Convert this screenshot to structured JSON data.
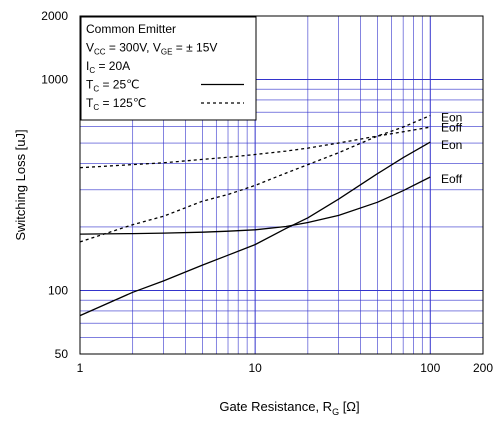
{
  "chart_data": {
    "type": "line",
    "xlabel": "Gate Resistance, R",
    "xlabel_sub": "G",
    "xlabel_unit": " [Ω]",
    "ylabel": "Switching Loss [uJ]",
    "x_scale": "log",
    "y_scale": "log",
    "xlim": [
      1,
      200
    ],
    "ylim": [
      50,
      2000
    ],
    "x_ticks": [
      {
        "value": 1,
        "label": "1"
      },
      {
        "value": 10,
        "label": "10"
      },
      {
        "value": 100,
        "label": "100"
      },
      {
        "value": 200,
        "label": "200"
      }
    ],
    "y_ticks": [
      {
        "value": 50,
        "label": "50"
      },
      {
        "value": 100,
        "label": "100"
      },
      {
        "value": 1000,
        "label": "1000"
      },
      {
        "value": 2000,
        "label": "2000"
      }
    ],
    "grid": true,
    "legend_box": {
      "position": "top-left",
      "lines": [
        {
          "parts": [
            {
              "t": "Common Emitter"
            }
          ]
        },
        {
          "parts": [
            {
              "t": "V"
            },
            {
              "t": "CC",
              "sub": true
            },
            {
              "t": " = 300V, V"
            },
            {
              "t": "GE",
              "sub": true
            },
            {
              "t": " = ±  15V"
            }
          ]
        },
        {
          "parts": [
            {
              "t": "I"
            },
            {
              "t": "C",
              "sub": true
            },
            {
              "t": " = 20A"
            }
          ]
        },
        {
          "parts": [
            {
              "t": "T"
            },
            {
              "t": "C",
              "sub": true
            },
            {
              "t": " =   25℃"
            }
          ],
          "line_style": "solid"
        },
        {
          "parts": [
            {
              "t": "T"
            },
            {
              "t": "C",
              "sub": true
            },
            {
              "t": " = 125℃"
            }
          ],
          "line_style": "dashed"
        }
      ]
    },
    "series": [
      {
        "name": "Eon",
        "condition": "25",
        "style": "solid",
        "x": [
          1,
          2,
          3,
          5,
          7,
          10,
          15,
          20,
          30,
          50,
          70,
          100
        ],
        "y": [
          76,
          98,
          111,
          132,
          147,
          165,
          197,
          221,
          271,
          358,
          426,
          505
        ]
      },
      {
        "name": "Eoff",
        "condition": "25",
        "style": "solid",
        "x": [
          1,
          2,
          3,
          5,
          7,
          10,
          15,
          20,
          30,
          50,
          70,
          100
        ],
        "y": [
          185,
          186,
          187,
          189,
          191,
          194,
          201,
          210,
          227,
          262,
          297,
          345
        ]
      },
      {
        "name": "Eon",
        "condition": "125",
        "style": "dashed",
        "x": [
          1,
          2,
          3,
          5,
          7,
          10,
          15,
          20,
          30,
          50,
          70,
          100
        ],
        "y": [
          170,
          205,
          225,
          265,
          285,
          315,
          360,
          395,
          450,
          540,
          595,
          675
        ]
      },
      {
        "name": "Eoff",
        "condition": "125",
        "style": "dashed",
        "x": [
          1,
          2,
          3,
          5,
          7,
          10,
          15,
          20,
          30,
          50,
          70,
          100
        ],
        "y": [
          382,
          395,
          403,
          418,
          428,
          441,
          458,
          473,
          500,
          540,
          565,
          595
        ]
      }
    ],
    "series_labels": [
      {
        "text": "Eon",
        "y": 660
      },
      {
        "text": "Eoff",
        "y": 592
      },
      {
        "text": "Eon",
        "y": 488
      },
      {
        "text": "Eoff",
        "y": 337
      }
    ]
  }
}
